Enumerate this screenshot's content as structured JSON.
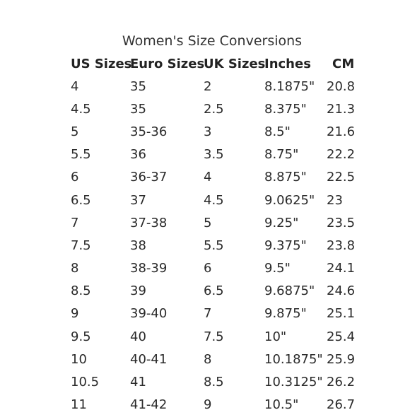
{
  "title": "Women's Size Conversions",
  "columns": [
    "US Sizes",
    "Euro Sizes",
    "UK Sizes",
    "Inches",
    "CM"
  ],
  "rows": [
    [
      "4",
      "35",
      "2",
      "8.1875\"",
      "20.8"
    ],
    [
      "4.5",
      "35",
      "2.5",
      "8.375\"",
      "21.3"
    ],
    [
      "5",
      "35-36",
      "3",
      "8.5\"",
      "21.6"
    ],
    [
      "5.5",
      "36",
      "3.5",
      "8.75\"",
      "22.2"
    ],
    [
      "6",
      "36-37",
      "4",
      "8.875\"",
      "22.5"
    ],
    [
      "6.5",
      "37",
      "4.5",
      "9.0625\"",
      "23"
    ],
    [
      "7",
      "37-38",
      "5",
      "9.25\"",
      "23.5"
    ],
    [
      "7.5",
      "38",
      "5.5",
      "9.375\"",
      "23.8"
    ],
    [
      "8",
      "38-39",
      "6",
      "9.5\"",
      "24.1"
    ],
    [
      "8.5",
      "39",
      "6.5",
      "9.6875\"",
      "24.6"
    ],
    [
      "9",
      "39-40",
      "7",
      "9.875\"",
      "25.1"
    ],
    [
      "9.5",
      "40",
      "7.5",
      "10\"",
      "25.4"
    ],
    [
      "10",
      "40-41",
      "8",
      "10.1875\"",
      "25.9"
    ],
    [
      "10.5",
      "41",
      "8.5",
      "10.3125\"",
      "26.2"
    ],
    [
      "11",
      "41-42",
      "9",
      "10.5\"",
      "26.7"
    ]
  ]
}
